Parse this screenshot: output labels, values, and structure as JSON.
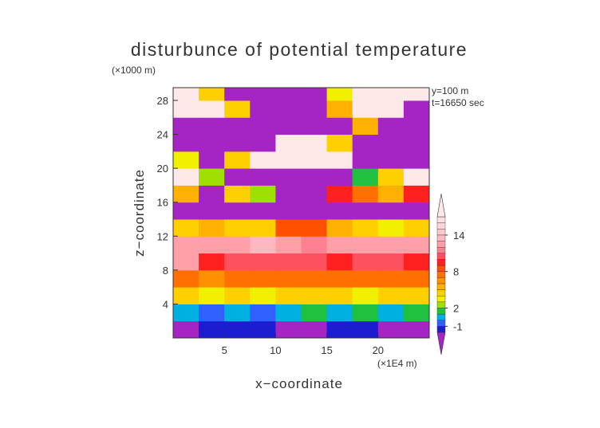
{
  "chart_data": {
    "type": "contour",
    "title": "disturbunce of potential temperature",
    "yunit": "(×1000 m)",
    "xunit": "(×1E4 m)",
    "annotations": [
      "y=100 m",
      "t=16650 sec"
    ],
    "xlabel": "x−coordinate",
    "ylabel": "z−coordinate",
    "xlim": [
      0,
      25
    ],
    "ylim": [
      0,
      29.5
    ],
    "xticks": [
      5,
      10,
      15,
      20
    ],
    "yticks": [
      4,
      8,
      12,
      16,
      20,
      24,
      28
    ],
    "x": [
      1.25,
      3.75,
      6.25,
      8.75,
      11.25,
      13.75,
      16.25,
      18.75,
      21.25,
      23.75
    ],
    "y": [
      1,
      3,
      5,
      7,
      9,
      11,
      13,
      15,
      17,
      19,
      21,
      23,
      25,
      27,
      29
    ],
    "z": [
      [
        -3,
        -1.5,
        -1.5,
        -1.5,
        -3,
        -3,
        -1.5,
        -1.5,
        -3,
        -3
      ],
      [
        0.5,
        -0.5,
        0.5,
        -0.5,
        0.5,
        1.5,
        0.5,
        1.5,
        0.5,
        1.5
      ],
      [
        4.5,
        3.5,
        4.5,
        3.5,
        4.5,
        4.5,
        4.5,
        3.5,
        4.5,
        4.5
      ],
      [
        7.5,
        6.5,
        7.5,
        7.5,
        7.5,
        7.5,
        7.5,
        7.5,
        7.5,
        7.5
      ],
      [
        12.5,
        9.5,
        10.5,
        10.5,
        10.5,
        10.5,
        9.5,
        10.5,
        10.5,
        9.5
      ],
      [
        12.5,
        12.5,
        12.5,
        13.5,
        12.5,
        11.5,
        12.5,
        12.5,
        12.5,
        12.5
      ],
      [
        4.5,
        5.5,
        4.5,
        4.5,
        8.5,
        8.5,
        5.5,
        4.5,
        3.5,
        4.5
      ],
      [
        -3,
        -3,
        -3,
        -3,
        -3,
        -3,
        -3,
        -3,
        -3,
        -3
      ],
      [
        5.5,
        -3,
        4.5,
        2.5,
        -3,
        -3,
        9.5,
        7.5,
        5.5,
        9.5
      ],
      [
        17.5,
        2.5,
        -3,
        -3,
        -3,
        -3,
        -3,
        1.5,
        4.5,
        17.5
      ],
      [
        3.5,
        -3,
        4.5,
        17.5,
        17.5,
        17.5,
        17.5,
        -3,
        -3,
        -3
      ],
      [
        -3,
        -3,
        -3,
        -3,
        17.5,
        17.5,
        4.5,
        -3,
        -3,
        -3
      ],
      [
        -3,
        -3,
        -3,
        -3,
        -3,
        -3,
        -3,
        5.5,
        -3,
        -3
      ],
      [
        17.5,
        17.5,
        4.5,
        -3,
        -3,
        -3,
        5.5,
        17.5,
        17.5,
        -3
      ],
      [
        17.5,
        4.5,
        -3,
        -3,
        -3,
        -3,
        3.5,
        17.5,
        17.5,
        17.5
      ]
    ],
    "colorbar": {
      "levels": [
        -2,
        -1,
        0,
        1,
        2,
        3,
        4,
        5,
        6,
        7,
        8,
        9,
        10,
        11,
        12,
        13,
        14,
        15,
        16,
        17
      ],
      "colors": [
        "#a424c4",
        "#1c1cd0",
        "#3060ff",
        "#00b0e0",
        "#20c040",
        "#a0e000",
        "#f0f000",
        "#ffd000",
        "#ffb000",
        "#ff9000",
        "#ff7000",
        "#ff5000",
        "#ff2020",
        "#ff5060",
        "#ff8090",
        "#ffa0a8",
        "#ffb8c0",
        "#ffc8cc",
        "#ffd4d8",
        "#ffe0e0",
        "#ffe8e8"
      ],
      "ticks": [
        -1,
        2,
        8,
        14
      ]
    }
  }
}
